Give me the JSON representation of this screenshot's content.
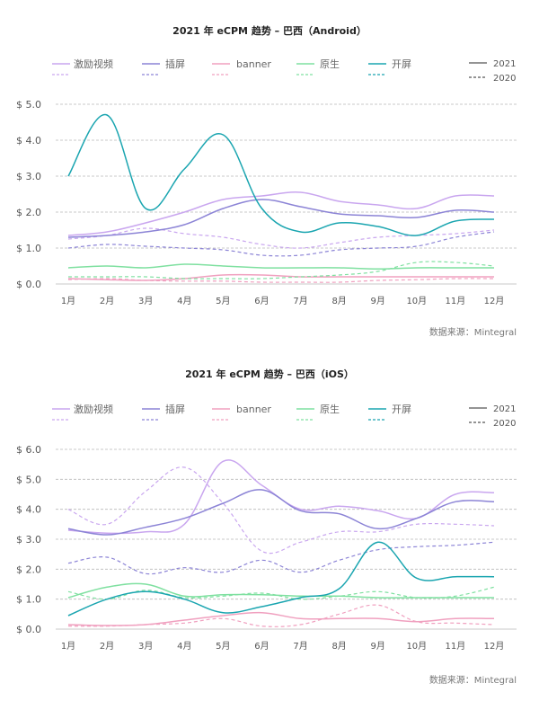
{
  "source_label": "数据来源：Mintegral",
  "legend_line_years": [
    "2021",
    "2020"
  ],
  "colors": {
    "激励视频": "#c9a6ef",
    "插屏": "#8c84d6",
    "banner": "#f0a0bf",
    "原生": "#7fe0a0",
    "开屏": "#1aa5b0",
    "axis_text": "#555555",
    "grid": "#b8b8b8"
  },
  "chart_data": [
    {
      "type": "line",
      "title": "2021 年 eCPM 趋势 – 巴西（Android）",
      "categories": [
        "1月",
        "2月",
        "3月",
        "4月",
        "5月",
        "6月",
        "7月",
        "8月",
        "9月",
        "10月",
        "11月",
        "12月"
      ],
      "y_ticks": [
        "$ 0.0",
        "$ 1.0",
        "$ 2.0",
        "$ 3.0",
        "$ 4.0",
        "$ 5.0"
      ],
      "ylim": [
        0,
        5
      ],
      "grid": true,
      "legend_position": "top",
      "series": [
        {
          "name": "激励视频",
          "year": "2021",
          "values": [
            1.35,
            1.45,
            1.7,
            2.0,
            2.35,
            2.45,
            2.55,
            2.3,
            2.2,
            2.1,
            2.45,
            2.45
          ]
        },
        {
          "name": "激励视频",
          "year": "2020",
          "values": [
            1.25,
            1.35,
            1.55,
            1.4,
            1.3,
            1.1,
            1.0,
            1.15,
            1.3,
            1.35,
            1.4,
            1.5
          ]
        },
        {
          "name": "插屏",
          "year": "2021",
          "values": [
            1.3,
            1.35,
            1.45,
            1.65,
            2.1,
            2.35,
            2.15,
            1.95,
            1.9,
            1.85,
            2.05,
            2.0
          ]
        },
        {
          "name": "插屏",
          "year": "2020",
          "values": [
            1.0,
            1.1,
            1.05,
            1.0,
            0.95,
            0.8,
            0.8,
            0.95,
            1.0,
            1.05,
            1.3,
            1.45
          ]
        },
        {
          "name": "banner",
          "year": "2021",
          "values": [
            0.15,
            0.12,
            0.1,
            0.15,
            0.25,
            0.25,
            0.2,
            0.2,
            0.2,
            0.2,
            0.2,
            0.2
          ]
        },
        {
          "name": "banner",
          "year": "2020",
          "values": [
            0.12,
            0.15,
            0.1,
            0.08,
            0.08,
            0.05,
            0.05,
            0.05,
            0.1,
            0.12,
            0.15,
            0.15
          ]
        },
        {
          "name": "原生",
          "year": "2021",
          "values": [
            0.45,
            0.5,
            0.45,
            0.55,
            0.5,
            0.45,
            0.45,
            0.45,
            0.42,
            0.45,
            0.45,
            0.45
          ]
        },
        {
          "name": "原生",
          "year": "2020",
          "values": [
            0.2,
            0.2,
            0.2,
            0.15,
            0.15,
            0.15,
            0.2,
            0.25,
            0.35,
            0.6,
            0.6,
            0.5
          ]
        },
        {
          "name": "开屏",
          "year": "2021",
          "values": [
            3.0,
            4.7,
            2.1,
            3.2,
            4.15,
            2.1,
            1.45,
            1.7,
            1.6,
            1.35,
            1.75,
            1.8
          ]
        }
      ]
    },
    {
      "type": "line",
      "title": "2021 年 eCPM 趋势 – 巴西（iOS）",
      "categories": [
        "1月",
        "2月",
        "3月",
        "4月",
        "5月",
        "6月",
        "7月",
        "8月",
        "9月",
        "10月",
        "11月",
        "12月"
      ],
      "y_ticks": [
        "$ 0.0",
        "$ 1.0",
        "$ 2.0",
        "$ 3.0",
        "$ 4.0",
        "$ 5.0",
        "$ 6.0"
      ],
      "ylim": [
        0,
        6
      ],
      "grid": true,
      "legend_position": "top",
      "series": [
        {
          "name": "激励视频",
          "year": "2021",
          "values": [
            3.3,
            3.2,
            3.25,
            3.5,
            5.6,
            4.8,
            4.0,
            4.1,
            3.95,
            3.7,
            4.5,
            4.55
          ]
        },
        {
          "name": "激励视频",
          "year": "2020",
          "values": [
            4.0,
            3.5,
            4.6,
            5.4,
            4.2,
            2.6,
            2.9,
            3.25,
            3.25,
            3.5,
            3.5,
            3.45
          ]
        },
        {
          "name": "插屏",
          "year": "2021",
          "values": [
            3.35,
            3.15,
            3.4,
            3.7,
            4.2,
            4.65,
            3.95,
            3.85,
            3.35,
            3.7,
            4.25,
            4.25
          ]
        },
        {
          "name": "插屏",
          "year": "2020",
          "values": [
            2.2,
            2.4,
            1.85,
            2.05,
            1.9,
            2.3,
            1.9,
            2.3,
            2.65,
            2.75,
            2.8,
            2.9
          ]
        },
        {
          "name": "banner",
          "year": "2021",
          "values": [
            0.15,
            0.12,
            0.15,
            0.3,
            0.45,
            0.55,
            0.35,
            0.35,
            0.35,
            0.25,
            0.35,
            0.35
          ]
        },
        {
          "name": "banner",
          "year": "2020",
          "values": [
            0.1,
            0.1,
            0.15,
            0.2,
            0.35,
            0.1,
            0.15,
            0.5,
            0.8,
            0.25,
            0.2,
            0.15
          ]
        },
        {
          "name": "原生",
          "year": "2021",
          "values": [
            1.05,
            1.4,
            1.5,
            1.1,
            1.15,
            1.15,
            1.1,
            1.1,
            1.05,
            1.05,
            1.05,
            1.05
          ]
        },
        {
          "name": "原生",
          "year": "2020",
          "values": [
            1.25,
            1.0,
            1.3,
            1.05,
            1.1,
            1.2,
            1.0,
            1.1,
            1.25,
            1.05,
            1.1,
            1.4
          ]
        },
        {
          "name": "开屏",
          "year": "2021",
          "values": [
            0.45,
            1.0,
            1.25,
            1.0,
            0.55,
            0.75,
            1.05,
            1.35,
            2.9,
            1.7,
            1.75,
            1.75
          ]
        }
      ]
    }
  ]
}
